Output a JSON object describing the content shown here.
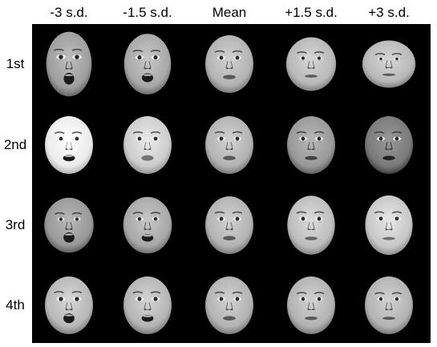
{
  "columns": [
    "-3 s.d.",
    "-1.5 s.d.",
    "Mean",
    "+1.5 s.d.",
    "+3 s.d."
  ],
  "rows": [
    "1st",
    "2nd",
    "3rd",
    "4th"
  ],
  "colors": {
    "background": "#000000",
    "skin": "#bdbdbd",
    "features": "#2a2a2a",
    "label_text": "#000000"
  },
  "faces": [
    [
      {
        "brightness": 0.62,
        "mouth_open": 0.95,
        "eye_size": 1.15,
        "elongation": 1.12
      },
      {
        "brightness": 0.66,
        "mouth_open": 0.65,
        "eye_size": 1.05,
        "elongation": 1.05
      },
      {
        "brightness": 0.7,
        "mouth_open": 0.2,
        "eye_size": 1.0,
        "elongation": 1.0
      },
      {
        "brightness": 0.72,
        "mouth_open": 0.05,
        "eye_size": 0.9,
        "elongation": 0.93
      },
      {
        "brightness": 0.72,
        "mouth_open": 0.0,
        "eye_size": 0.75,
        "elongation": 0.82
      }
    ],
    [
      {
        "brightness": 0.92,
        "mouth_open": 0.4,
        "eye_size": 0.95,
        "elongation": 1.0
      },
      {
        "brightness": 0.8,
        "mouth_open": 0.3,
        "eye_size": 0.98,
        "elongation": 1.0
      },
      {
        "brightness": 0.7,
        "mouth_open": 0.2,
        "eye_size": 1.0,
        "elongation": 1.0
      },
      {
        "brightness": 0.6,
        "mouth_open": 0.15,
        "eye_size": 1.0,
        "elongation": 1.0
      },
      {
        "brightness": 0.48,
        "mouth_open": 0.2,
        "eye_size": 1.0,
        "elongation": 1.0
      }
    ],
    [
      {
        "brightness": 0.6,
        "mouth_open": 0.8,
        "eye_size": 0.9,
        "elongation": 0.95
      },
      {
        "brightness": 0.66,
        "mouth_open": 0.5,
        "eye_size": 0.95,
        "elongation": 0.98
      },
      {
        "brightness": 0.7,
        "mouth_open": 0.2,
        "eye_size": 1.0,
        "elongation": 1.0
      },
      {
        "brightness": 0.74,
        "mouth_open": 0.1,
        "eye_size": 1.0,
        "elongation": 1.02
      },
      {
        "brightness": 0.78,
        "mouth_open": 0.05,
        "eye_size": 1.0,
        "elongation": 1.03
      }
    ],
    [
      {
        "brightness": 0.72,
        "mouth_open": 0.75,
        "eye_size": 1.1,
        "elongation": 1.0
      },
      {
        "brightness": 0.71,
        "mouth_open": 0.45,
        "eye_size": 1.05,
        "elongation": 1.0
      },
      {
        "brightness": 0.7,
        "mouth_open": 0.2,
        "eye_size": 1.0,
        "elongation": 1.0
      },
      {
        "brightness": 0.7,
        "mouth_open": 0.1,
        "eye_size": 0.95,
        "elongation": 1.0
      },
      {
        "brightness": 0.7,
        "mouth_open": 0.05,
        "eye_size": 0.9,
        "elongation": 1.0
      }
    ]
  ]
}
